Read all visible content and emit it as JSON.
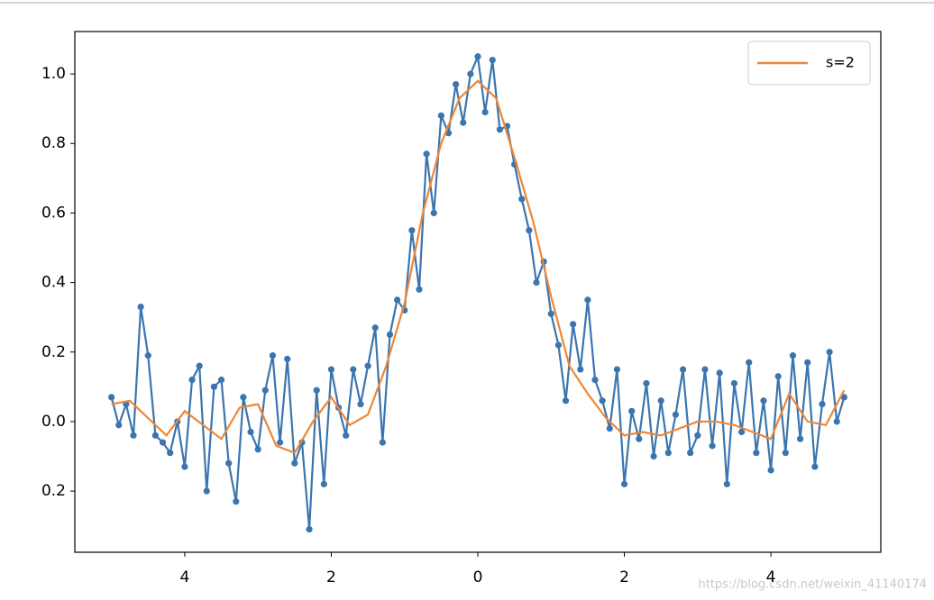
{
  "chart_data": {
    "type": "line",
    "series": [
      {
        "color": "#3b75af",
        "markers": true,
        "x": [
          -5.0,
          -4.9,
          -4.8,
          -4.7,
          -4.6,
          -4.5,
          -4.4,
          -4.3,
          -4.2,
          -4.1,
          -4.0,
          -3.9,
          -3.8,
          -3.7,
          -3.6,
          -3.5,
          -3.4,
          -3.3,
          -3.2,
          -3.1,
          -3.0,
          -2.9,
          -2.8,
          -2.7,
          -2.6,
          -2.5,
          -2.4,
          -2.3,
          -2.2,
          -2.1,
          -2.0,
          -1.9,
          -1.8,
          -1.7,
          -1.6,
          -1.5,
          -1.4,
          -1.3,
          -1.2,
          -1.1,
          -1.0,
          -0.9,
          -0.8,
          -0.7,
          -0.6,
          -0.5,
          -0.4,
          -0.3,
          -0.2,
          -0.1,
          0.0,
          0.1,
          0.2,
          0.3,
          0.4,
          0.5,
          0.6,
          0.7,
          0.8,
          0.9,
          1.0,
          1.1,
          1.2,
          1.3,
          1.4,
          1.5,
          1.6,
          1.7,
          1.8,
          1.9,
          2.0,
          2.1,
          2.2,
          2.3,
          2.4,
          2.5,
          2.6,
          2.7,
          2.8,
          2.9,
          3.0,
          3.1,
          3.2,
          3.3,
          3.4,
          3.5,
          3.6,
          3.7,
          3.8,
          3.9,
          4.0,
          4.1,
          4.2,
          4.3,
          4.4,
          4.5,
          4.6,
          4.7,
          4.8,
          4.9,
          5.0
        ],
        "values": [
          0.07,
          -0.01,
          0.05,
          -0.04,
          0.33,
          0.19,
          -0.04,
          -0.06,
          -0.09,
          0.0,
          -0.13,
          0.12,
          0.16,
          -0.2,
          0.1,
          0.12,
          -0.12,
          -0.23,
          0.07,
          -0.03,
          -0.08,
          0.09,
          0.19,
          -0.06,
          0.18,
          -0.12,
          -0.06,
          -0.31,
          0.09,
          -0.18,
          0.15,
          0.04,
          -0.04,
          0.15,
          0.05,
          0.16,
          0.27,
          -0.06,
          0.25,
          0.35,
          0.32,
          0.55,
          0.38,
          0.77,
          0.6,
          0.88,
          0.83,
          0.97,
          0.86,
          1.0,
          1.05,
          0.89,
          1.04,
          0.84,
          0.85,
          0.74,
          0.64,
          0.55,
          0.4,
          0.46,
          0.31,
          0.22,
          0.06,
          0.28,
          0.15,
          0.35,
          0.12,
          0.06,
          -0.02,
          0.15,
          -0.18,
          0.03,
          -0.05,
          0.11,
          -0.1,
          0.06,
          -0.09,
          0.02,
          0.15,
          -0.09,
          -0.04,
          0.15,
          -0.07,
          0.14,
          -0.18,
          0.11,
          -0.03,
          0.17,
          -0.09,
          0.06,
          -0.14,
          0.13,
          -0.09,
          0.19,
          -0.05,
          0.17,
          -0.13,
          0.05,
          0.2,
          0.0,
          0.07
        ]
      },
      {
        "name": "s=2",
        "color": "#ef8636",
        "markers": false,
        "x": [
          -5,
          -4.75,
          -4.5,
          -4.25,
          -4,
          -3.75,
          -3.5,
          -3.25,
          -3,
          -2.75,
          -2.5,
          -2.25,
          -2,
          -1.75,
          -1.5,
          -1.25,
          -1,
          -0.75,
          -0.5,
          -0.25,
          0,
          0.25,
          0.5,
          0.75,
          1,
          1.25,
          1.5,
          1.75,
          2,
          2.25,
          2.5,
          2.75,
          3,
          3.25,
          3.5,
          3.75,
          4,
          4.25,
          4.5,
          4.75,
          5
        ],
        "values": [
          0.05,
          0.06,
          0.01,
          -0.04,
          0.03,
          -0.01,
          -0.05,
          0.04,
          0.05,
          -0.07,
          -0.09,
          0.0,
          0.07,
          -0.01,
          0.02,
          0.16,
          0.34,
          0.6,
          0.8,
          0.93,
          0.98,
          0.93,
          0.76,
          0.58,
          0.36,
          0.16,
          0.08,
          0.01,
          -0.04,
          -0.03,
          -0.04,
          -0.02,
          0.0,
          0.0,
          -0.01,
          -0.03,
          -0.05,
          0.08,
          0.0,
          -0.01,
          0.09
        ]
      }
    ],
    "xlim": [
      -5.5,
      5.5
    ],
    "ylim": [
      -0.376,
      1.122
    ],
    "xticks": [
      {
        "value": -4,
        "label": "4"
      },
      {
        "value": -2,
        "label": "2"
      },
      0,
      2,
      4
    ],
    "yticks": [
      {
        "value": -0.2,
        "label": "0.2"
      },
      {
        "value": 0,
        "label": "0.0"
      },
      {
        "value": 0.2,
        "label": "0.2"
      },
      {
        "value": 0.4,
        "label": "0.4"
      },
      {
        "value": 0.6,
        "label": "0.6"
      },
      {
        "value": 0.8,
        "label": "0.8"
      },
      {
        "value": 1.0,
        "label": "1.0"
      }
    ],
    "legend": "upper right",
    "watermark": "https://blog.csdn.net/weixin_41140174"
  }
}
